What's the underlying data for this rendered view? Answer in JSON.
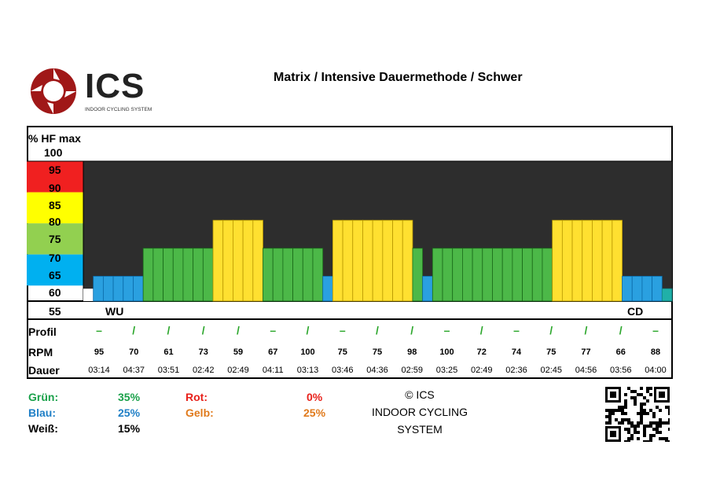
{
  "header": {
    "title": "Matrix / Intensive Dauermethode / Schwer",
    "logo_text": "ICS",
    "logo_sub": "INDOOR CYCLING SYSTEM"
  },
  "chart_data": {
    "type": "bar",
    "ylabel": "% HF max",
    "y_levels": [
      "100",
      "95",
      "90",
      "85",
      "80",
      "75",
      "70",
      "65",
      "60",
      "55"
    ],
    "zones": [
      {
        "color": "#f02020",
        "from": 90,
        "to": 100
      },
      {
        "color": "#ffff00",
        "from": 80,
        "to": 90
      },
      {
        "color": "#92d050",
        "from": 70,
        "to": 80
      },
      {
        "color": "#00b0f0",
        "from": 60,
        "to": 70
      }
    ],
    "segments": [
      {
        "zone": "white",
        "hf": 59,
        "n": 1
      },
      {
        "zone": "blue",
        "hf": 63,
        "n": 5
      },
      {
        "zone": "green",
        "hf": 72,
        "n": 7
      },
      {
        "zone": "yellow",
        "hf": 81,
        "n": 5
      },
      {
        "zone": "green",
        "hf": 72,
        "n": 6
      },
      {
        "zone": "blue",
        "hf": 63,
        "n": 1
      },
      {
        "zone": "yellow",
        "hf": 81,
        "n": 8
      },
      {
        "zone": "green",
        "hf": 72,
        "n": 1
      },
      {
        "zone": "blue",
        "hf": 63,
        "n": 1
      },
      {
        "zone": "green",
        "hf": 72,
        "n": 12
      },
      {
        "zone": "yellow",
        "hf": 81,
        "n": 7
      },
      {
        "zone": "blue",
        "hf": 63,
        "n": 4
      },
      {
        "zone": "teal",
        "hf": 59,
        "n": 1
      }
    ],
    "labels": {
      "wu": "WU",
      "cd": "CD"
    },
    "rows": {
      "profil_label": "Profil",
      "rpm_label": "RPM",
      "dauer_label": "Dauer",
      "profil": [
        "–",
        "/",
        "/",
        "/",
        "/",
        "–",
        "/",
        "–",
        "/",
        "/",
        "–",
        "/",
        "–",
        "/",
        "/",
        "/",
        "–"
      ],
      "rpm": [
        "95",
        "70",
        "61",
        "73",
        "59",
        "67",
        "100",
        "75",
        "75",
        "98",
        "100",
        "72",
        "74",
        "75",
        "77",
        "66",
        "88"
      ],
      "dauer": [
        "03:14",
        "04:37",
        "03:51",
        "02:42",
        "02:49",
        "04:11",
        "03:13",
        "03:46",
        "04:36",
        "02:59",
        "03:25",
        "02:49",
        "02:36",
        "02:45",
        "04:56",
        "03:56",
        "04:00"
      ]
    }
  },
  "legend": {
    "gruen_label": "Grün:",
    "gruen_val": "35%",
    "blau_label": "Blau:",
    "blau_val": "25%",
    "weiss_label": "Weiß:",
    "weiss_val": "15%",
    "rot_label": "Rot:",
    "rot_val": "0%",
    "gelb_label": "Gelb:",
    "gelb_val": "25%",
    "colors": {
      "gruen": "#1aa14a",
      "blau": "#1f7fc6",
      "rot": "#e8201a",
      "gelb": "#e07a1c",
      "weiss": "#000000"
    }
  },
  "copyright": {
    "line1": "© ICS",
    "line2": "INDOOR CYCLING",
    "line3": "SYSTEM"
  }
}
